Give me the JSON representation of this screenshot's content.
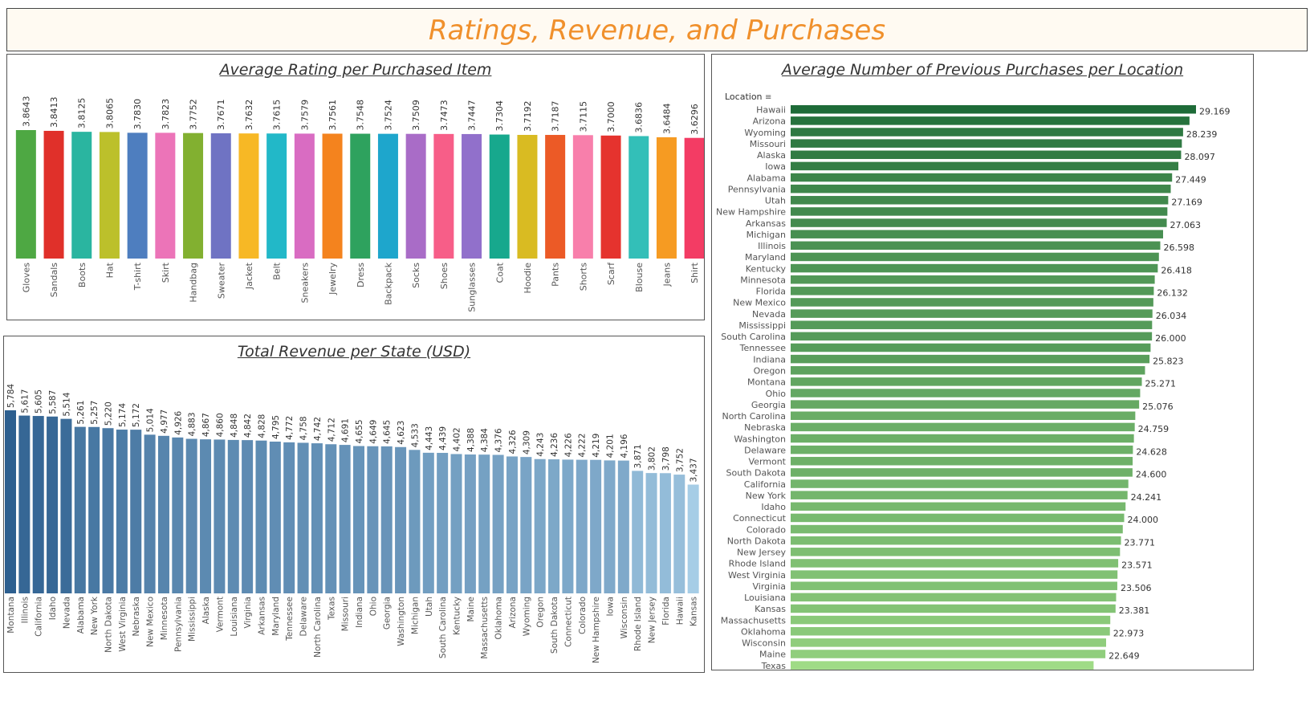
{
  "dashboard_title": "Ratings, Revenue, and Purchases",
  "charts": {
    "rating_title": "Average Rating per Purchased Item",
    "revenue_title": "Total Revenue per State (USD)",
    "purchases_title": "Average Number of Previous Purchases per Location",
    "purchases_location_header": "Location"
  },
  "chart_data": [
    {
      "type": "bar",
      "title": "Average Rating per Purchased Item",
      "categories": [
        "Gloves",
        "Sandals",
        "Boots",
        "Hat",
        "T-shirt",
        "Skirt",
        "Handbag",
        "Sweater",
        "Jacket",
        "Belt",
        "Sneakers",
        "Jewelry",
        "Dress",
        "Backpack",
        "Socks",
        "Shoes",
        "Sunglasses",
        "Coat",
        "Hoodie",
        "Pants",
        "Shorts",
        "Scarf",
        "Blouse",
        "Jeans",
        "Shirt"
      ],
      "values": [
        3.8643,
        3.8413,
        3.8125,
        3.8065,
        3.783,
        3.7823,
        3.7752,
        3.7671,
        3.7632,
        3.7615,
        3.7579,
        3.7561,
        3.7548,
        3.7524,
        3.7509,
        3.7473,
        3.7447,
        3.7304,
        3.7192,
        3.7187,
        3.7115,
        3.7,
        3.6836,
        3.6484,
        3.6296
      ],
      "labels": [
        "3.8643",
        "3.8413",
        "3.8125",
        "3.8065",
        "3.7830",
        "3.7823",
        "3.7752",
        "3.7671",
        "3.7632",
        "3.7615",
        "3.7579",
        "3.7561",
        "3.7548",
        "3.7524",
        "3.7509",
        "3.7473",
        "3.7447",
        "3.7304",
        "3.7192",
        "3.7187",
        "3.7115",
        "3.7000",
        "3.6836",
        "3.6484",
        "3.6296"
      ],
      "colors": [
        "#4ea843",
        "#e0302a",
        "#2ab5a0",
        "#bcc02b",
        "#4e7ebf",
        "#ec74b8",
        "#82b030",
        "#6f73c3",
        "#f7b825",
        "#22b8c8",
        "#d96cc2",
        "#f4831e",
        "#2ea25e",
        "#1ea6cc",
        "#a96cc7",
        "#f75e88",
        "#9170cb",
        "#17a88d",
        "#d9bb22",
        "#ec5a26",
        "#f87fab",
        "#e5332e",
        "#33bfb8",
        "#f69b22",
        "#f33c64"
      ]
    },
    {
      "type": "bar",
      "title": "Total Revenue per State (USD)",
      "categories": [
        "Montana",
        "Illinois",
        "California",
        "Idaho",
        "Nevada",
        "Alabama",
        "New York",
        "North Dakota",
        "West Virginia",
        "Nebraska",
        "New Mexico",
        "Minnesota",
        "Pennsylvania",
        "Mississippi",
        "Alaska",
        "Vermont",
        "Louisiana",
        "Virginia",
        "Arkansas",
        "Maryland",
        "Tennessee",
        "Delaware",
        "North Carolina",
        "Texas",
        "Missouri",
        "Indiana",
        "Ohio",
        "Georgia",
        "Washington",
        "Michigan",
        "Utah",
        "South Carolina",
        "Kentucky",
        "Maine",
        "Massachusetts",
        "Oklahoma",
        "Arizona",
        "Wyoming",
        "Oregon",
        "South Dakota",
        "Connecticut",
        "Colorado",
        "New Hampshire",
        "Iowa",
        "Wisconsin",
        "Rhode Island",
        "New Jersey",
        "Florida",
        "Hawaii",
        "Kansas"
      ],
      "values": [
        5784,
        5617,
        5605,
        5587,
        5514,
        5261,
        5257,
        5220,
        5174,
        5172,
        5014,
        4977,
        4926,
        4883,
        4867,
        4860,
        4848,
        4842,
        4828,
        4795,
        4772,
        4758,
        4742,
        4712,
        4691,
        4655,
        4649,
        4645,
        4623,
        4533,
        4443,
        4439,
        4402,
        4388,
        4384,
        4376,
        4326,
        4309,
        4243,
        4236,
        4226,
        4222,
        4219,
        4201,
        4196,
        3871,
        3802,
        3798,
        3752,
        3437
      ],
      "labels": [
        "5,784",
        "5,617",
        "5,605",
        "5,587",
        "5,514",
        "5,261",
        "5,257",
        "5,220",
        "5,174",
        "5,172",
        "5,014",
        "4,977",
        "4,926",
        "4,883",
        "4,867",
        "4,860",
        "4,848",
        "4,842",
        "4,828",
        "4,795",
        "4,772",
        "4,758",
        "4,742",
        "4,712",
        "4,691",
        "4,655",
        "4,649",
        "4,645",
        "4,623",
        "4,533",
        "4,443",
        "4,439",
        "4,402",
        "4,388",
        "4,384",
        "4,376",
        "4,326",
        "4,309",
        "4,243",
        "4,236",
        "4,226",
        "4,222",
        "4,219",
        "4,201",
        "4,196",
        "3,871",
        "3,802",
        "3,798",
        "3,752",
        "3,437"
      ],
      "color_dark": "#2d5f8f",
      "color_light": "#a6cde6"
    },
    {
      "type": "bar",
      "orientation": "horizontal",
      "title": "Average Number of Previous Purchases per Location",
      "categories": [
        "Hawaii",
        "Arizona",
        "Wyoming",
        "Missouri",
        "Alaska",
        "Iowa",
        "Alabama",
        "Pennsylvania",
        "Utah",
        "New Hampshire",
        "Arkansas",
        "Michigan",
        "Illinois",
        "Maryland",
        "Kentucky",
        "Minnesota",
        "Florida",
        "New Mexico",
        "Nevada",
        "Mississippi",
        "South Carolina",
        "Tennessee",
        "Indiana",
        "Oregon",
        "Montana",
        "Ohio",
        "Georgia",
        "North Carolina",
        "Nebraska",
        "Washington",
        "Delaware",
        "Vermont",
        "South Dakota",
        "California",
        "New York",
        "Idaho",
        "Connecticut",
        "Colorado",
        "North Dakota",
        "New Jersey",
        "Rhode Island",
        "West Virginia",
        "Virginia",
        "Louisiana",
        "Kansas",
        "Massachusetts",
        "Oklahoma",
        "Wisconsin",
        "Maine",
        "Texas"
      ],
      "values": [
        29.169,
        28.7,
        28.239,
        28.15,
        28.097,
        27.9,
        27.449,
        27.35,
        27.169,
        27.11,
        27.063,
        26.8,
        26.598,
        26.5,
        26.418,
        26.2,
        26.132,
        26.1,
        26.034,
        26.01,
        26.0,
        25.9,
        25.823,
        25.5,
        25.271,
        25.15,
        25.076,
        24.8,
        24.759,
        24.7,
        24.628,
        24.61,
        24.6,
        24.3,
        24.241,
        24.1,
        24.0,
        23.9,
        23.771,
        23.7,
        23.571,
        23.52,
        23.506,
        23.42,
        23.381,
        23.0,
        22.973,
        22.7,
        22.649,
        21.8
      ],
      "labels": [
        "29.169",
        "",
        "28.239",
        "",
        "28.097",
        "",
        "27.449",
        "",
        "27.169",
        "",
        "27.063",
        "",
        "26.598",
        "",
        "26.418",
        "",
        "26.132",
        "",
        "26.034",
        "",
        "26.000",
        "",
        "25.823",
        "",
        "25.271",
        "",
        "25.076",
        "",
        "24.759",
        "",
        "24.628",
        "",
        "24.600",
        "",
        "24.241",
        "",
        "24.000",
        "",
        "23.771",
        "",
        "23.571",
        "",
        "23.506",
        "",
        "23.381",
        "",
        "22.973",
        "",
        "22.649",
        ""
      ],
      "color_dark": "#1e6b38",
      "color_light": "#9fdb86"
    }
  ]
}
